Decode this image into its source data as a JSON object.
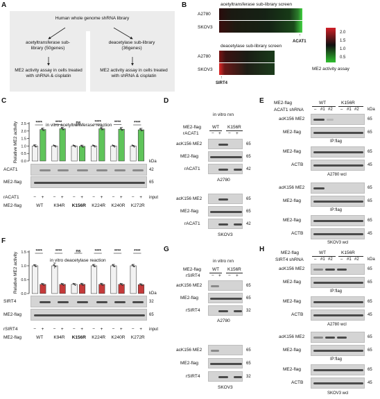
{
  "panel_labels": {
    "A": "A",
    "B": "B",
    "C": "C",
    "D": "D",
    "E": "E",
    "F": "F",
    "G": "G",
    "H": "H"
  },
  "panelA": {
    "top": "Human whole genome shRNA library",
    "left_lib": "acetyltransferase sub-library (50genes)",
    "right_lib": "deacetylase sub-library (36genes)",
    "assay": "ME2 activity assay in cells treated with shRNA & cisplatin"
  },
  "panelB": {
    "title_top": "acetyltransferase sub-library screen",
    "title_bottom": "deacetylase sub-library screen",
    "rows": [
      "A2780",
      "SKOV3"
    ],
    "hit_top": "ACAT1",
    "hit_bottom": "SIRT4",
    "scale_ticks": [
      "2.0",
      "1.5",
      "1.0",
      "0.5"
    ],
    "scale_label": "ME2 activity assay",
    "colors": {
      "high": "#d01f27",
      "mid": "#111111",
      "low": "#2fbf2f"
    }
  },
  "panelC": {
    "title": "in vitro acetyltransferase reaction",
    "ylabel": "Relative ME2 activity",
    "yticks": [
      "0.0",
      "0.5",
      "1.0",
      "1.5",
      "2.0",
      "2.5"
    ],
    "sig": [
      "****",
      "****",
      "ns",
      "****",
      "****",
      "****"
    ],
    "blot_labels": [
      "ACAT1",
      "ME2-flag"
    ],
    "kda": [
      "42",
      "65"
    ],
    "kda_unit": "kDa",
    "row_rx": "rACAT1",
    "row_me2": "ME2-flag",
    "input": "input",
    "signs": [
      "−",
      "+",
      "−",
      "+",
      "−",
      "+",
      "−",
      "+",
      "−",
      "+",
      "−",
      "+"
    ],
    "constructs": [
      "WT",
      "K94R",
      "K156R",
      "K224R",
      "K240R",
      "K272R"
    ]
  },
  "panelF": {
    "title": "in vitro deacetylase reaction",
    "ylabel": "Relative ME2 activity",
    "yticks": [
      "0.0",
      "0.5",
      "1.0",
      "1.5"
    ],
    "sig": [
      "****",
      "****",
      "ns",
      "****",
      "****",
      "****"
    ],
    "blot_labels": [
      "SIRT4",
      "ME2-flag"
    ],
    "kda": [
      "32",
      "65"
    ],
    "kda_unit": "kDa",
    "row_rx": "rSIRT4",
    "row_me2": "ME2-flag",
    "input": "input",
    "signs": [
      "−",
      "+",
      "−",
      "+",
      "−",
      "+",
      "−",
      "+",
      "−",
      "+",
      "−",
      "+"
    ],
    "constructs": [
      "WT",
      "K94R",
      "K156R",
      "K224R",
      "K240R",
      "K272R"
    ]
  },
  "chart_data": [
    {
      "type": "bar",
      "title": "in vitro acetyltransferase reaction",
      "ylabel": "Relative ME2 activity",
      "ylim": [
        0,
        2.5
      ],
      "categories": [
        "WT",
        "K94R",
        "K156R",
        "K224R",
        "K240R",
        "K272R"
      ],
      "series": [
        {
          "name": "− rACAT1",
          "values": [
            1.0,
            1.0,
            1.0,
            1.0,
            1.0,
            1.0
          ],
          "errors": [
            0.08,
            0.05,
            0.05,
            0.05,
            0.05,
            0.05
          ]
        },
        {
          "name": "+ rACAT1",
          "values": [
            2.1,
            2.15,
            0.98,
            2.15,
            2.12,
            2.08
          ],
          "errors": [
            0.1,
            0.1,
            0.08,
            0.12,
            0.12,
            0.1
          ]
        }
      ],
      "significance": [
        "****",
        "****",
        "ns",
        "****",
        "****",
        "****"
      ],
      "colors": [
        "#f2f2f2",
        "#5fc45a"
      ]
    },
    {
      "type": "bar",
      "title": "in vitro deacetylase reaction",
      "ylabel": "Relative ME2 activity",
      "ylim": [
        0,
        1.5
      ],
      "categories": [
        "WT",
        "K94R",
        "K156R",
        "K224R",
        "K240R",
        "K272R"
      ],
      "series": [
        {
          "name": "− rSIRT4",
          "values": [
            1.0,
            1.0,
            0.33,
            1.0,
            1.0,
            1.0
          ],
          "errors": [
            0.04,
            0.1,
            0.03,
            0.05,
            0.05,
            0.05
          ]
        },
        {
          "name": "+ rSIRT4",
          "values": [
            0.33,
            0.33,
            0.33,
            0.33,
            0.33,
            0.32
          ],
          "errors": [
            0.03,
            0.03,
            0.04,
            0.04,
            0.03,
            0.03
          ]
        }
      ],
      "significance": [
        "****",
        "****",
        "ns",
        "****",
        "****",
        "****"
      ],
      "colors": [
        "#f2f2f2",
        "#c53a3a"
      ]
    }
  ],
  "panelD": {
    "header": "in vitro rxn",
    "me2flag": "ME2-flag",
    "wt": "WT",
    "mut": "K156R",
    "rx": "rACAT1",
    "signs": [
      "−",
      "+",
      "−",
      "+"
    ],
    "rows": [
      "acK156 ME2",
      "ME2-flag",
      "rACAT1"
    ],
    "kda": [
      "65",
      "65",
      "42"
    ],
    "cell1": "A2780",
    "cell2": "SKOV3"
  },
  "panelG": {
    "header": "in vitro rxn",
    "me2flag": "ME2-flag",
    "wt": "WT",
    "mut": "K156R",
    "rx": "rSIRT4",
    "signs": [
      "−",
      "+",
      "−",
      "+"
    ],
    "rows": [
      "acK156 ME2",
      "ME2-flag",
      "rSIRT4"
    ],
    "kda": [
      "65",
      "65",
      "32"
    ],
    "cell1": "A2780",
    "cell2": "SKOV3"
  },
  "panelE": {
    "me2flag": "ME2-flag",
    "wt": "WT",
    "mut": "K156R",
    "sh": "ACAT1 shRNA",
    "signs": [
      "–",
      "#1",
      "#2",
      "–",
      "#1",
      "#2"
    ],
    "kda_unit": "kDa",
    "rows1": [
      "acK156 ME2",
      "ME2-flag"
    ],
    "ip": "IP:flag",
    "rows2": [
      "ME2-flag",
      "ACTB"
    ],
    "wcl1": "A2780 wcl",
    "wcl2": "SKOV3 wcl",
    "kda1": [
      "65",
      "65"
    ],
    "kda2": [
      "65",
      "45"
    ]
  },
  "panelH": {
    "me2flag": "ME2-flag",
    "wt": "WT",
    "mut": "K156R",
    "sh": "SIRT4 shRNA",
    "signs": [
      "–",
      "#1",
      "#2",
      "–",
      "#1",
      "#2"
    ],
    "kda_unit": "kDa",
    "rows1": [
      "acK156 ME2",
      "ME2-flag"
    ],
    "ip": "IP:flag",
    "rows2": [
      "ME2-flag",
      "ACTB"
    ],
    "wcl1": "A2780 wcl",
    "wcl2": "SKOV3 wcl",
    "kda1": [
      "65",
      "65"
    ],
    "kda2": [
      "65",
      "45"
    ]
  }
}
